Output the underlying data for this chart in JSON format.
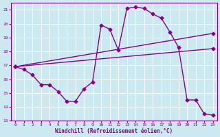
{
  "xlabel": "Windchill (Refroidissement éolien,°C)",
  "background_color": "#cce8f0",
  "line_color": "#880088",
  "grid_color": "#ffffff",
  "xlim": [
    -0.5,
    23.5
  ],
  "ylim": [
    13,
    21.5
  ],
  "yticks": [
    13,
    14,
    15,
    16,
    17,
    18,
    19,
    20,
    21
  ],
  "xticks": [
    0,
    1,
    2,
    3,
    4,
    5,
    6,
    7,
    8,
    9,
    10,
    11,
    12,
    13,
    14,
    15,
    16,
    17,
    18,
    19,
    20,
    21,
    22,
    23
  ],
  "series1_x": [
    0,
    1,
    2,
    3,
    4,
    5,
    6,
    7,
    8,
    9,
    10,
    11,
    12,
    13,
    14,
    15,
    16,
    17,
    18,
    19,
    20,
    21,
    22,
    23
  ],
  "series1_y": [
    16.9,
    16.7,
    16.3,
    15.6,
    15.6,
    15.1,
    14.4,
    14.4,
    15.3,
    15.8,
    19.9,
    19.6,
    18.1,
    21.1,
    21.2,
    21.1,
    20.7,
    20.4,
    19.4,
    18.3,
    14.5,
    14.5,
    13.5,
    13.4
  ],
  "series2_x": [
    0,
    23
  ],
  "series2_y": [
    16.9,
    19.3
  ],
  "series3_x": [
    0,
    23
  ],
  "series3_y": [
    16.9,
    18.2
  ],
  "marker": "D",
  "markersize": 2.5,
  "linewidth": 1.0
}
